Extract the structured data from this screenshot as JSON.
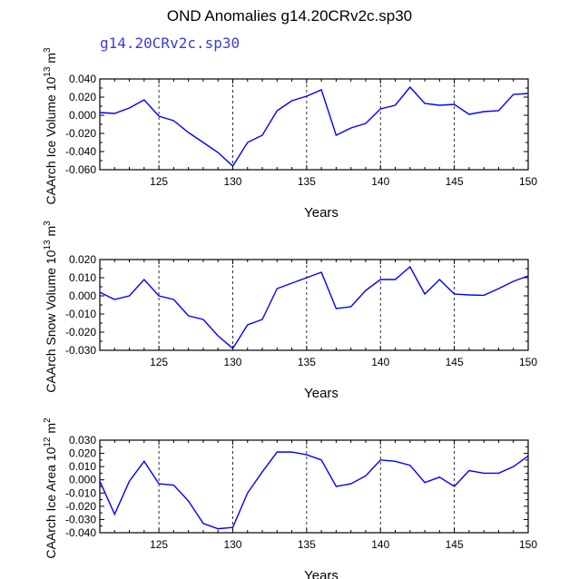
{
  "title": "OND Anomalies g14.20CRv2c.sp30",
  "subtitle": "g14.20CRv2c.sp30",
  "chart_data": [
    {
      "type": "line",
      "ylabel": "CAArch Ice Volume 10",
      "ylabel_exp": "13",
      "ylabel_unit": " m",
      "ylabel_unit_exp": "3",
      "xlabel": "Years",
      "xlim": [
        121,
        150
      ],
      "ylim": [
        -0.06,
        0.04
      ],
      "xticks": [
        125,
        130,
        135,
        140,
        145,
        150
      ],
      "yticks": [
        -0.06,
        -0.04,
        -0.02,
        0.0,
        0.02,
        0.04
      ],
      "ytick_labels": [
        "-0.060",
        "-0.040",
        "-0.020",
        "0.000",
        "0.020",
        "0.040"
      ],
      "vlines": [
        125,
        130,
        135,
        140,
        145
      ],
      "color": "#0000ff",
      "x": [
        121,
        122,
        123,
        124,
        125,
        126,
        127,
        128,
        129,
        130,
        131,
        132,
        133,
        134,
        135,
        136,
        137,
        138,
        139,
        140,
        141,
        142,
        143,
        144,
        145,
        146,
        147,
        148,
        149,
        150
      ],
      "values": [
        0.003,
        0.002,
        0.008,
        0.017,
        -0.001,
        -0.006,
        -0.019,
        -0.03,
        -0.041,
        -0.056,
        -0.03,
        -0.022,
        0.005,
        0.016,
        0.021,
        0.028,
        -0.022,
        -0.014,
        -0.009,
        0.007,
        0.011,
        0.031,
        0.013,
        0.011,
        0.012,
        0.001,
        0.004,
        0.005,
        0.023,
        0.024
      ]
    },
    {
      "type": "line",
      "ylabel": "CAArch Snow Volume 10",
      "ylabel_exp": "13",
      "ylabel_unit": " m",
      "ylabel_unit_exp": "3",
      "xlabel": "Years",
      "xlim": [
        121,
        150
      ],
      "ylim": [
        -0.03,
        0.02
      ],
      "xticks": [
        125,
        130,
        135,
        140,
        145,
        150
      ],
      "yticks": [
        -0.03,
        -0.02,
        -0.01,
        0.0,
        0.01,
        0.02
      ],
      "ytick_labels": [
        "-0.030",
        "-0.020",
        "-0.010",
        "0.000",
        "0.010",
        "0.020"
      ],
      "vlines": [
        125,
        130,
        135,
        140,
        145
      ],
      "color": "#0000ff",
      "x": [
        121,
        122,
        123,
        124,
        125,
        126,
        127,
        128,
        129,
        130,
        131,
        132,
        133,
        134,
        135,
        136,
        137,
        138,
        139,
        140,
        141,
        142,
        143,
        144,
        145,
        146,
        147,
        148,
        149,
        150
      ],
      "values": [
        0.002,
        -0.002,
        0.0,
        0.009,
        0.0,
        -0.002,
        -0.011,
        -0.013,
        -0.022,
        -0.029,
        -0.016,
        -0.013,
        0.004,
        0.007,
        0.01,
        0.013,
        -0.007,
        -0.006,
        0.003,
        0.009,
        0.009,
        0.016,
        0.001,
        0.009,
        0.001,
        0.0005,
        0.0003,
        0.004,
        0.008,
        0.011
      ]
    },
    {
      "type": "line",
      "ylabel": "CAArch Ice Area 10",
      "ylabel_exp": "12",
      "ylabel_unit": " m",
      "ylabel_unit_exp": "2",
      "xlabel": "Years",
      "xlim": [
        121,
        150
      ],
      "ylim": [
        -0.04,
        0.03
      ],
      "xticks": [
        125,
        130,
        135,
        140,
        145,
        150
      ],
      "yticks": [
        -0.04,
        -0.03,
        -0.02,
        -0.01,
        0.0,
        0.01,
        0.02,
        0.03
      ],
      "ytick_labels": [
        "-0.040",
        "-0.030",
        "-0.020",
        "-0.010",
        "0.000",
        "0.010",
        "0.020",
        "0.030"
      ],
      "vlines": [
        125,
        130,
        135,
        140,
        145
      ],
      "color": "#0000ff",
      "x": [
        121,
        122,
        123,
        124,
        125,
        126,
        127,
        128,
        129,
        130,
        131,
        132,
        133,
        134,
        135,
        136,
        137,
        138,
        139,
        140,
        141,
        142,
        143,
        144,
        145,
        146,
        147,
        148,
        149,
        150
      ],
      "values": [
        -0.001,
        -0.026,
        -0.001,
        0.014,
        -0.003,
        -0.004,
        -0.016,
        -0.033,
        -0.037,
        -0.036,
        -0.01,
        0.006,
        0.021,
        0.021,
        0.019,
        0.015,
        -0.005,
        -0.003,
        0.003,
        0.015,
        0.014,
        0.011,
        -0.002,
        0.002,
        -0.005,
        0.007,
        0.005,
        0.005,
        0.01,
        0.018
      ]
    }
  ]
}
